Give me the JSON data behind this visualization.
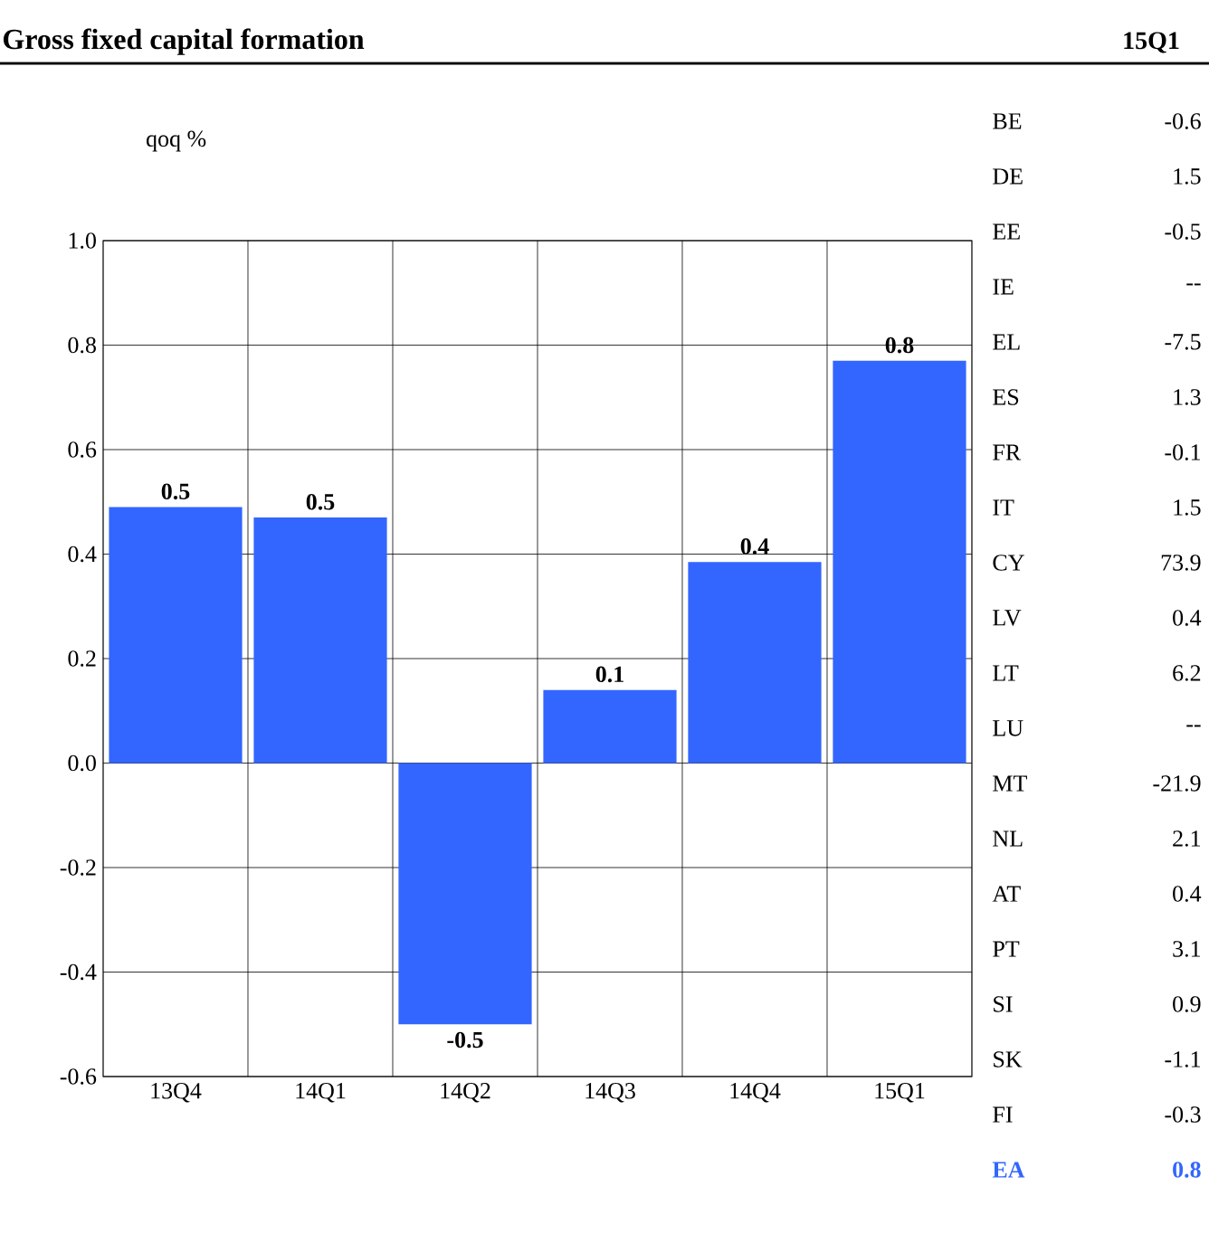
{
  "chart_data": [
    {
      "type": "bar",
      "title": "Gross fixed capital formation",
      "ylabel": "qoq %",
      "categories": [
        "13Q4",
        "14Q1",
        "14Q2",
        "14Q3",
        "14Q4",
        "15Q1"
      ],
      "values": [
        0.49,
        0.47,
        -0.5,
        0.14,
        0.385,
        0.77
      ],
      "value_labels": [
        "0.5",
        "0.5",
        "-0.5",
        "0.1",
        "0.4",
        "0.8"
      ],
      "color": "#3366ff",
      "ylim": [
        -0.6,
        1.0
      ],
      "yticks": [
        {
          "value": -0.6,
          "label": "-0.6"
        },
        {
          "value": -0.4,
          "label": "-0.4"
        },
        {
          "value": -0.2,
          "label": "-0.2"
        },
        {
          "value": 0,
          "label": "0.0"
        },
        {
          "value": 0.2,
          "label": "0.2"
        },
        {
          "value": 0.4,
          "label": "0.4"
        },
        {
          "value": 0.6,
          "label": "0.6"
        },
        {
          "value": 0.8,
          "label": "0.8"
        },
        {
          "value": 1.0,
          "label": "1.0"
        }
      ],
      "grid": true
    },
    {
      "type": "other",
      "title": "15Q1",
      "categories": [
        "BE",
        "DE",
        "EE",
        "IE",
        "EL",
        "ES",
        "FR",
        "IT",
        "CY",
        "LV",
        "LT",
        "LU",
        "MT",
        "NL",
        "AT",
        "PT",
        "SI",
        "SK",
        "FI",
        "EA"
      ],
      "value_labels": [
        "-0.6",
        "1.5",
        "-0.5",
        "--",
        "-7.5",
        "1.3",
        "-0.1",
        "1.5",
        "73.9",
        "0.4",
        "6.2",
        "--",
        "-21.9",
        "2.1",
        "0.4",
        "3.1",
        "0.9",
        "-1.1",
        "-0.3",
        "0.8"
      ],
      "colors": [
        "#000000",
        "#000000",
        "#000000",
        "#000000",
        "#000000",
        "#000000",
        "#000000",
        "#000000",
        "#000000",
        "#000000",
        "#000000",
        "#000000",
        "#000000",
        "#000000",
        "#000000",
        "#000000",
        "#000000",
        "#000000",
        "#000000",
        "#3366ff"
      ]
    }
  ]
}
